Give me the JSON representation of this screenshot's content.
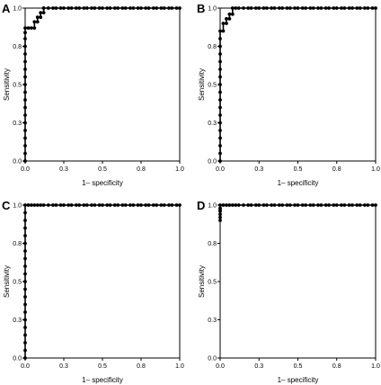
{
  "chart_data": [
    {
      "panel": "A",
      "type": "line",
      "xlabel": "1– specificity",
      "ylabel": "Sensitivity",
      "xlim": [
        0,
        1
      ],
      "ylim": [
        0,
        1
      ],
      "xticks": [
        "0.0",
        "0.3",
        "0.5",
        "0.8",
        "1.0"
      ],
      "yticks": [
        "0.0",
        "0.3",
        "0.5",
        "0.8",
        "1.0"
      ],
      "grid": false,
      "x": [
        0,
        0,
        0,
        0,
        0,
        0,
        0,
        0,
        0,
        0,
        0,
        0,
        0,
        0,
        0,
        0,
        0,
        0,
        0,
        0.02,
        0.04,
        0.06,
        0.06,
        0.08,
        0.08,
        0.1,
        0.1,
        0.12,
        0.12,
        0.12,
        0.15,
        0.18,
        0.2,
        0.23,
        0.25,
        0.28,
        0.3,
        0.33,
        0.35,
        0.38,
        0.4,
        0.43,
        0.45,
        0.48,
        0.5,
        0.53,
        0.55,
        0.58,
        0.6,
        0.63,
        0.65,
        0.68,
        0.7,
        0.73,
        0.75,
        0.78,
        0.8,
        0.83,
        0.85,
        0.88,
        0.9,
        0.93,
        0.95,
        0.98,
        1.0
      ],
      "y": [
        0,
        0.05,
        0.1,
        0.15,
        0.2,
        0.25,
        0.3,
        0.35,
        0.4,
        0.45,
        0.5,
        0.55,
        0.6,
        0.65,
        0.7,
        0.75,
        0.8,
        0.84,
        0.87,
        0.87,
        0.87,
        0.87,
        0.91,
        0.91,
        0.94,
        0.94,
        0.97,
        0.97,
        1.0,
        1.0,
        1.0,
        1.0,
        1.0,
        1.0,
        1.0,
        1.0,
        1.0,
        1.0,
        1.0,
        1.0,
        1.0,
        1.0,
        1.0,
        1.0,
        1.0,
        1.0,
        1.0,
        1.0,
        1.0,
        1.0,
        1.0,
        1.0,
        1.0,
        1.0,
        1.0,
        1.0,
        1.0,
        1.0,
        1.0,
        1.0,
        1.0,
        1.0,
        1.0,
        1.0,
        1.0
      ]
    },
    {
      "panel": "B",
      "type": "line",
      "xlabel": "1– specificity",
      "ylabel": "Sensitivity",
      "xlim": [
        0,
        1
      ],
      "ylim": [
        0,
        1
      ],
      "xticks": [
        "0.0",
        "0.3",
        "0.5",
        "0.8",
        "1.0"
      ],
      "yticks": [
        "0.0",
        "0.3",
        "0.5",
        "0.8",
        "1.0"
      ],
      "grid": false,
      "x": [
        0,
        0,
        0,
        0,
        0,
        0,
        0,
        0,
        0,
        0,
        0,
        0,
        0,
        0,
        0,
        0,
        0,
        0,
        0.02,
        0.02,
        0.04,
        0.04,
        0.06,
        0.06,
        0.08,
        0.08,
        0.1,
        0.12,
        0.15,
        0.18,
        0.2,
        0.23,
        0.25,
        0.28,
        0.3,
        0.33,
        0.35,
        0.38,
        0.4,
        0.43,
        0.45,
        0.48,
        0.5,
        0.53,
        0.55,
        0.58,
        0.6,
        0.63,
        0.65,
        0.68,
        0.7,
        0.73,
        0.75,
        0.78,
        0.8,
        0.83,
        0.85,
        0.88,
        0.9,
        0.93,
        0.95,
        0.98,
        1.0
      ],
      "y": [
        0,
        0.05,
        0.1,
        0.15,
        0.2,
        0.25,
        0.3,
        0.35,
        0.4,
        0.45,
        0.5,
        0.55,
        0.6,
        0.65,
        0.7,
        0.75,
        0.8,
        0.85,
        0.85,
        0.9,
        0.9,
        0.93,
        0.93,
        0.96,
        0.96,
        1.0,
        1.0,
        1.0,
        1.0,
        1.0,
        1.0,
        1.0,
        1.0,
        1.0,
        1.0,
        1.0,
        1.0,
        1.0,
        1.0,
        1.0,
        1.0,
        1.0,
        1.0,
        1.0,
        1.0,
        1.0,
        1.0,
        1.0,
        1.0,
        1.0,
        1.0,
        1.0,
        1.0,
        1.0,
        1.0,
        1.0,
        1.0,
        1.0,
        1.0,
        1.0,
        1.0,
        1.0,
        1.0
      ]
    },
    {
      "panel": "C",
      "type": "line",
      "xlabel": "1– specificity",
      "ylabel": "Sensitivity",
      "xlim": [
        0,
        1
      ],
      "ylim": [
        0,
        1
      ],
      "xticks": [
        "0.0",
        "0.3",
        "0.5",
        "0.8",
        "1.0"
      ],
      "yticks": [
        "0.0",
        "0.3",
        "0.5",
        "0.8",
        "1.0"
      ],
      "grid": false,
      "x": [
        0,
        0,
        0,
        0,
        0,
        0,
        0,
        0,
        0,
        0,
        0,
        0,
        0,
        0,
        0,
        0,
        0,
        0,
        0,
        0,
        0,
        0.02,
        0.04,
        0.06,
        0.08,
        0.1,
        0.12,
        0.15,
        0.18,
        0.2,
        0.23,
        0.25,
        0.28,
        0.3,
        0.33,
        0.35,
        0.38,
        0.4,
        0.43,
        0.45,
        0.48,
        0.5,
        0.53,
        0.55,
        0.58,
        0.6,
        0.63,
        0.65,
        0.68,
        0.7,
        0.73,
        0.75,
        0.78,
        0.8,
        0.83,
        0.85,
        0.88,
        0.9,
        0.93,
        0.95,
        0.98,
        1.0
      ],
      "y": [
        0,
        0.05,
        0.1,
        0.15,
        0.2,
        0.25,
        0.3,
        0.35,
        0.4,
        0.45,
        0.5,
        0.55,
        0.6,
        0.65,
        0.7,
        0.75,
        0.8,
        0.85,
        0.9,
        0.95,
        1.0,
        1.0,
        1.0,
        1.0,
        1.0,
        1.0,
        1.0,
        1.0,
        1.0,
        1.0,
        1.0,
        1.0,
        1.0,
        1.0,
        1.0,
        1.0,
        1.0,
        1.0,
        1.0,
        1.0,
        1.0,
        1.0,
        1.0,
        1.0,
        1.0,
        1.0,
        1.0,
        1.0,
        1.0,
        1.0,
        1.0,
        1.0,
        1.0,
        1.0,
        1.0,
        1.0,
        1.0,
        1.0,
        1.0,
        1.0,
        1.0,
        1.0
      ]
    },
    {
      "panel": "D",
      "type": "line",
      "xlabel": "1– specificity",
      "ylabel": "Sensitivity",
      "xlim": [
        0,
        1
      ],
      "ylim": [
        0,
        1
      ],
      "xticks": [
        "0.0",
        "0.3",
        "0.5",
        "0.8",
        "1.0"
      ],
      "yticks": [
        "0.0",
        "0.3",
        "0.5",
        "0.8",
        "1.0"
      ],
      "grid": false,
      "x": [
        0,
        0,
        0,
        0,
        0,
        0,
        0,
        0.02,
        0.04,
        0.06,
        0.08,
        0.1,
        0.12,
        0.15,
        0.18,
        0.2,
        0.23,
        0.25,
        0.28,
        0.3,
        0.33,
        0.35,
        0.38,
        0.4,
        0.43,
        0.45,
        0.48,
        0.5,
        0.53,
        0.55,
        0.58,
        0.6,
        0.63,
        0.65,
        0.68,
        0.7,
        0.73,
        0.75,
        0.78,
        0.8,
        0.83,
        0.85,
        0.88,
        0.9,
        0.93,
        0.95,
        0.98,
        1.0
      ],
      "y": [
        0.9,
        0.92,
        0.94,
        0.96,
        0.97,
        0.98,
        1.0,
        1.0,
        1.0,
        1.0,
        1.0,
        1.0,
        1.0,
        1.0,
        1.0,
        1.0,
        1.0,
        1.0,
        1.0,
        1.0,
        1.0,
        1.0,
        1.0,
        1.0,
        1.0,
        1.0,
        1.0,
        1.0,
        1.0,
        1.0,
        1.0,
        1.0,
        1.0,
        1.0,
        1.0,
        1.0,
        1.0,
        1.0,
        1.0,
        1.0,
        1.0,
        1.0,
        1.0,
        1.0,
        1.0,
        1.0,
        1.0,
        1.0
      ]
    }
  ]
}
